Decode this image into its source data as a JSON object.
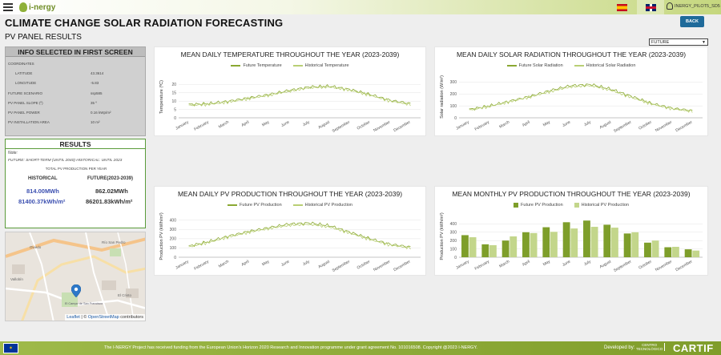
{
  "header": {
    "logo_text": "i-nergy",
    "user_label": "INERGY_PILOT5_SD5",
    "page_title": "CLIMATE CHANGE SOLAR RADIATION FORECASTING",
    "subtitle": "PV PANEL RESULTS",
    "back_label": "BACK",
    "scenario_select": {
      "selected": "FUTURE"
    },
    "flag_es_icon": "spain-flag-icon",
    "flag_uk_icon": "uk-flag-icon"
  },
  "info": {
    "title": "INFO SELECTED IN FIRST SCREEN",
    "coordinates_label": "COORDINATES",
    "rows": [
      {
        "label": "LATITUDE",
        "value": "43.3614"
      },
      {
        "label": "LONGITUDE",
        "value": "-5.83"
      },
      {
        "label": "FUTURE SCENARIO",
        "value": "ssp585"
      },
      {
        "label": "PV PANEL SLOPE (º)",
        "value": "35 º"
      },
      {
        "label": "PV PANEL POWER",
        "value": "0.16 kWp/m²"
      },
      {
        "label": "PV INSTALLATION AREA",
        "value": "10 m²"
      }
    ]
  },
  "results": {
    "title": "RESULTS",
    "note_label": "Note:",
    "note_text": "FUTURE: SHORT-TERM (UNTIL 2040) HISTORICAL: UNTIL 2023",
    "total_label": "TOTAL PV PRODUCTION PER YEAR",
    "historical_header": "HISTORICAL",
    "future_header": "FUTURE(2023-2039)",
    "historical_mwh": "814.00MWh",
    "future_mwh": "862.02MWh",
    "historical_kwhm2": "81400.37kWh/m²",
    "future_kwhm2": "86201.83kWh/m²"
  },
  "map": {
    "leaflet_label": "Leaflet",
    "separator": "|",
    "copyright": "©",
    "osm_label": "OpenStreetMap",
    "contributors": "contributors",
    "labels": [
      "Oviedo",
      "Río San Pedro",
      "Vallobín",
      "El Cristo",
      "El Campo de San Francisco"
    ]
  },
  "charts": {
    "temperature": {
      "title": "MEAN DAILY TEMPERATURE THROUGHOUT THE YEAR (2023-2039)",
      "legend": [
        "Future Temperature",
        "Historical Temperature"
      ],
      "ylabel": "Temperature (ºC)"
    },
    "solar": {
      "title": "MEAN DAILY SOLAR RADIATION THROUGHOUT THE YEAR (2023-2039)",
      "legend": [
        "Future Solar Radiation",
        "Historical Solar Radiation"
      ],
      "ylabel": "Solar radiation (W/m²)"
    },
    "pv_daily": {
      "title": "MEAN DAILY PV PRODUCTION THROUGHOUT THE YEAR (2023-2039)",
      "legend": [
        "Future PV Production",
        "Historical PV Production"
      ],
      "ylabel": "Production PV (kWh/m²)"
    },
    "pv_monthly": {
      "title": "MEAN MONTHLY PV PRODUCTION THROUGHOUT THE YEAR (2023-2039)",
      "legend": [
        "Future PV Production",
        "Historical PV Production"
      ],
      "ylabel": "Production PV (kWh/m²)"
    }
  },
  "chart_data": [
    {
      "type": "line",
      "months": [
        "January",
        "February",
        "March",
        "April",
        "May",
        "June",
        "July",
        "August",
        "September",
        "October",
        "November",
        "December"
      ],
      "ylim": [
        0,
        25
      ],
      "yticks": [
        0,
        5,
        10,
        15,
        20
      ],
      "series": [
        {
          "name": "Future Temperature",
          "color": "#8aa832",
          "values": [
            8,
            8.5,
            10,
            12,
            14,
            16.5,
            18.5,
            19,
            17,
            14,
            10.5,
            8.5
          ]
        },
        {
          "name": "Historical Temperature",
          "color": "#b9cf74",
          "values": [
            7.5,
            8,
            9.5,
            11.5,
            13.5,
            16,
            18,
            18.5,
            16.5,
            13.5,
            10,
            8
          ]
        }
      ]
    },
    {
      "type": "line",
      "months": [
        "January",
        "February",
        "March",
        "April",
        "May",
        "June",
        "July",
        "August",
        "September",
        "October",
        "November",
        "December"
      ],
      "ylim": [
        0,
        350
      ],
      "yticks": [
        0,
        100,
        200,
        300
      ],
      "series": [
        {
          "name": "Future Solar Radiation",
          "color": "#8aa832",
          "values": [
            70,
            100,
            140,
            180,
            230,
            270,
            280,
            240,
            180,
            120,
            80,
            60
          ]
        },
        {
          "name": "Historical Solar Radiation",
          "color": "#b9cf74",
          "values": [
            65,
            95,
            135,
            175,
            220,
            260,
            270,
            230,
            170,
            115,
            75,
            55
          ]
        }
      ]
    },
    {
      "type": "line",
      "months": [
        "January",
        "February",
        "March",
        "April",
        "May",
        "June",
        "July",
        "August",
        "September",
        "October",
        "November",
        "December"
      ],
      "ylim": [
        0,
        450
      ],
      "yticks": [
        0,
        100,
        200,
        300,
        400
      ],
      "series": [
        {
          "name": "Future PV Production",
          "color": "#8aa832",
          "values": [
            120,
            170,
            230,
            280,
            320,
            360,
            370,
            340,
            270,
            200,
            140,
            110
          ]
        },
        {
          "name": "Historical PV Production",
          "color": "#b9cf74",
          "values": [
            110,
            160,
            220,
            270,
            310,
            345,
            355,
            325,
            260,
            190,
            130,
            100
          ]
        }
      ]
    },
    {
      "type": "bar",
      "categories": [
        "January",
        "February",
        "March",
        "April",
        "May",
        "June",
        "July",
        "August",
        "September",
        "October",
        "November",
        "December"
      ],
      "ylim": [
        0,
        500
      ],
      "yticks": [
        0,
        100,
        200,
        300,
        400
      ],
      "series": [
        {
          "name": "Future PV Production",
          "color": "#7e9e2a",
          "values": [
            265,
            155,
            200,
            300,
            360,
            420,
            440,
            390,
            285,
            175,
            120,
            95
          ]
        },
        {
          "name": "Historical PV Production",
          "color": "#c3d68b",
          "values": [
            240,
            145,
            250,
            290,
            305,
            345,
            365,
            355,
            300,
            200,
            125,
            80
          ]
        }
      ]
    }
  ],
  "footer": {
    "eu_flag_icon": "eu-flag-icon",
    "text": "The I-NERGY Project has received funding from the European Union's Horizon 2020 Research and Innovation programme under grant agreement No. 101016508. Copyright @2023 I-NERGY.",
    "developed_by": "Developed by:",
    "centro_line1": "CENTRO",
    "centro_line2": "TECNOLÓGICO",
    "cartif": "CARTIF"
  }
}
